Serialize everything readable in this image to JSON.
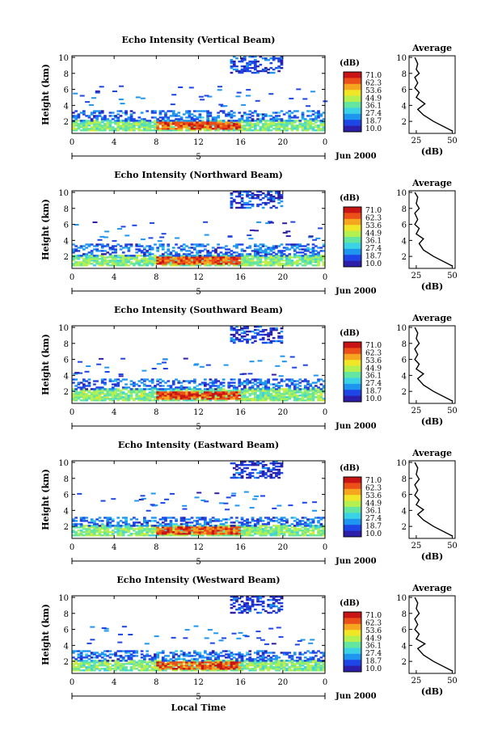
{
  "figure": {
    "shared_xlabel": "Local Time",
    "date_label": "Jun 2000",
    "day_label": "5",
    "colorbar_unit": "(dB)",
    "colorbar_ticks": [
      "71.0",
      "62.3",
      "53.6",
      "44.9",
      "36.1",
      "27.4",
      "18.7",
      "10.0"
    ],
    "colormap": [
      "#2c1ea8",
      "#1e46e6",
      "#1e96f0",
      "#3cd2e6",
      "#64e6a0",
      "#b4f050",
      "#f0e628",
      "#f5a51e",
      "#eb5019",
      "#c81414"
    ],
    "profile_title": "Average",
    "profile_xlabel": "(dB)",
    "profile_xticks": [
      "25",
      "50"
    ],
    "ylabel": "Height (km)"
  },
  "chart_data": [
    {
      "type": "heatmap",
      "title": "Echo Intensity (Vertical Beam)",
      "xlabel": "",
      "ylabel": "Height (km)",
      "x_ticks": [
        "0",
        "4",
        "8",
        "12",
        "16",
        "20",
        "0"
      ],
      "y_ticks": [
        "2",
        "4",
        "6",
        "8",
        "10"
      ],
      "xlim": [
        0,
        24
      ],
      "ylim": [
        0.5,
        10.2
      ],
      "zlim": [
        10,
        71
      ],
      "layers": [
        {
          "t0": 0,
          "t1": 24,
          "h0": 0.8,
          "h1": 2.0,
          "dB": 40
        },
        {
          "t0": 8,
          "t1": 16,
          "h0": 1.0,
          "h1": 1.8,
          "dB": 62
        },
        {
          "t0": 0,
          "t1": 24,
          "h0": 2.0,
          "h1": 3.3,
          "dB": 22
        },
        {
          "t0": 15,
          "t1": 20,
          "h0": 8.0,
          "h1": 10.0,
          "dB": 18
        }
      ],
      "profile": {
        "xlim": [
          20,
          52
        ],
        "points": [
          [
            24,
            10
          ],
          [
            26,
            9.2
          ],
          [
            25,
            8.5
          ],
          [
            27,
            8
          ],
          [
            24,
            7.5
          ],
          [
            26,
            6.8
          ],
          [
            24,
            6.2
          ],
          [
            27,
            5.6
          ],
          [
            25,
            5
          ],
          [
            31,
            4.2
          ],
          [
            26,
            3.5
          ],
          [
            30,
            2.8
          ],
          [
            37,
            2
          ],
          [
            50,
            0.8
          ]
        ]
      }
    },
    {
      "type": "heatmap",
      "title": "Echo Intensity (Northward Beam)",
      "xlabel": "",
      "ylabel": "Height (km)",
      "x_ticks": [
        "0",
        "4",
        "8",
        "12",
        "16",
        "20",
        "0"
      ],
      "y_ticks": [
        "2",
        "4",
        "6",
        "8",
        "10"
      ],
      "xlim": [
        0,
        24
      ],
      "ylim": [
        0.5,
        10.2
      ],
      "zlim": [
        10,
        71
      ],
      "layers": [
        {
          "t0": 0,
          "t1": 24,
          "h0": 0.8,
          "h1": 2.0,
          "dB": 40
        },
        {
          "t0": 8,
          "t1": 16,
          "h0": 1.0,
          "h1": 1.8,
          "dB": 62
        },
        {
          "t0": 0,
          "t1": 24,
          "h0": 2.0,
          "h1": 3.5,
          "dB": 22
        },
        {
          "t0": 15,
          "t1": 20,
          "h0": 8.0,
          "h1": 10.0,
          "dB": 18
        }
      ],
      "profile": {
        "xlim": [
          20,
          52
        ],
        "points": [
          [
            24,
            10
          ],
          [
            26,
            9.4
          ],
          [
            25,
            8.6
          ],
          [
            27,
            8
          ],
          [
            24,
            7.4
          ],
          [
            26,
            6.6
          ],
          [
            24,
            6
          ],
          [
            27,
            5.5
          ],
          [
            25,
            4.8
          ],
          [
            30,
            4.2
          ],
          [
            27,
            3.6
          ],
          [
            30,
            2.8
          ],
          [
            37,
            2
          ],
          [
            50,
            0.8
          ]
        ]
      }
    },
    {
      "type": "heatmap",
      "title": "Echo Intensity (Southward Beam)",
      "xlabel": "",
      "ylabel": "Height (km)",
      "x_ticks": [
        "0",
        "4",
        "8",
        "12",
        "16",
        "20",
        "0"
      ],
      "y_ticks": [
        "2",
        "4",
        "6",
        "8",
        "10"
      ],
      "xlim": [
        0,
        24
      ],
      "ylim": [
        0.5,
        10.2
      ],
      "zlim": [
        10,
        71
      ],
      "layers": [
        {
          "t0": 0,
          "t1": 24,
          "h0": 0.8,
          "h1": 2.2,
          "dB": 40
        },
        {
          "t0": 8,
          "t1": 16,
          "h0": 1.0,
          "h1": 1.9,
          "dB": 62
        },
        {
          "t0": 0,
          "t1": 24,
          "h0": 2.2,
          "h1": 3.5,
          "dB": 22
        },
        {
          "t0": 15,
          "t1": 20,
          "h0": 8.0,
          "h1": 10.0,
          "dB": 18
        }
      ],
      "profile": {
        "xlim": [
          20,
          52
        ],
        "points": [
          [
            24,
            10
          ],
          [
            26,
            9.3
          ],
          [
            25,
            8.6
          ],
          [
            27,
            8
          ],
          [
            24,
            7.3
          ],
          [
            26,
            6.6
          ],
          [
            24,
            6
          ],
          [
            27,
            5.4
          ],
          [
            25,
            4.8
          ],
          [
            30,
            4.2
          ],
          [
            26,
            3.6
          ],
          [
            30,
            2.8
          ],
          [
            37,
            2
          ],
          [
            50,
            0.8
          ]
        ]
      }
    },
    {
      "type": "heatmap",
      "title": "Echo Intensity (Eastward Beam)",
      "xlabel": "",
      "ylabel": "Height (km)",
      "x_ticks": [
        "0",
        "4",
        "8",
        "12",
        "16",
        "20",
        "0"
      ],
      "y_ticks": [
        "2",
        "4",
        "6",
        "8",
        "10"
      ],
      "xlim": [
        0,
        24
      ],
      "ylim": [
        0.5,
        10.2
      ],
      "zlim": [
        10,
        71
      ],
      "layers": [
        {
          "t0": 0,
          "t1": 24,
          "h0": 0.8,
          "h1": 2.0,
          "dB": 40
        },
        {
          "t0": 8,
          "t1": 16,
          "h0": 1.0,
          "h1": 1.8,
          "dB": 62
        },
        {
          "t0": 0,
          "t1": 24,
          "h0": 2.0,
          "h1": 3.2,
          "dB": 22
        },
        {
          "t0": 15,
          "t1": 20,
          "h0": 8.0,
          "h1": 10.0,
          "dB": 18
        }
      ],
      "profile": {
        "xlim": [
          20,
          52
        ],
        "points": [
          [
            24,
            10
          ],
          [
            26,
            9.3
          ],
          [
            25,
            8.5
          ],
          [
            27,
            7.9
          ],
          [
            24,
            7.2
          ],
          [
            26,
            6.5
          ],
          [
            24,
            5.9
          ],
          [
            27,
            5.3
          ],
          [
            25,
            4.7
          ],
          [
            30,
            4.1
          ],
          [
            26,
            3.5
          ],
          [
            30,
            2.8
          ],
          [
            37,
            2
          ],
          [
            50,
            0.8
          ]
        ]
      }
    },
    {
      "type": "heatmap",
      "title": "Echo Intensity (Westward Beam)",
      "xlabel": "",
      "ylabel": "Height (km)",
      "x_ticks": [
        "0",
        "4",
        "8",
        "12",
        "16",
        "20",
        "0"
      ],
      "y_ticks": [
        "2",
        "4",
        "6",
        "8",
        "10"
      ],
      "xlim": [
        0,
        24
      ],
      "ylim": [
        0.5,
        10.2
      ],
      "zlim": [
        10,
        71
      ],
      "layers": [
        {
          "t0": 0,
          "t1": 24,
          "h0": 0.8,
          "h1": 2.0,
          "dB": 40
        },
        {
          "t0": 8,
          "t1": 16,
          "h0": 1.0,
          "h1": 1.8,
          "dB": 62
        },
        {
          "t0": 0,
          "t1": 24,
          "h0": 2.0,
          "h1": 3.3,
          "dB": 22
        },
        {
          "t0": 15,
          "t1": 20,
          "h0": 8.0,
          "h1": 10.0,
          "dB": 18
        }
      ],
      "profile": {
        "xlim": [
          20,
          52
        ],
        "points": [
          [
            24,
            10
          ],
          [
            26,
            9.3
          ],
          [
            25,
            8.6
          ],
          [
            27,
            8
          ],
          [
            24,
            7.3
          ],
          [
            26,
            6.6
          ],
          [
            24,
            6
          ],
          [
            27,
            5.4
          ],
          [
            25,
            4.8
          ],
          [
            31,
            4.2
          ],
          [
            26,
            3.6
          ],
          [
            30,
            2.8
          ],
          [
            37,
            2
          ],
          [
            50,
            0.8
          ]
        ]
      }
    }
  ]
}
